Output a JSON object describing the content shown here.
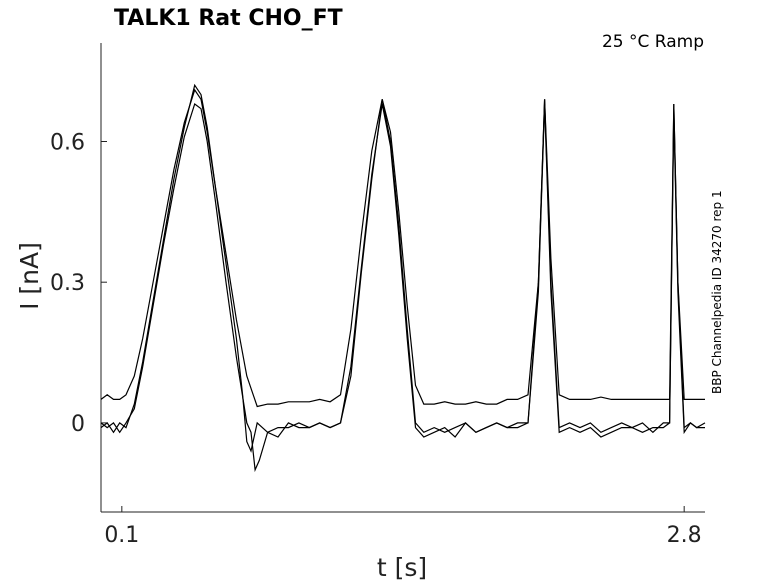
{
  "chart_data": {
    "type": "line",
    "title": "TALK1  Rat  CHO_FT",
    "annotation": "25 °C  Ramp",
    "side_label": "BBP Channelpedia ID 34270 rep 1",
    "xlabel": "t [s]",
    "ylabel": "I [nA]",
    "xlim": [
      0.0,
      2.9
    ],
    "ylim": [
      -0.19,
      0.81
    ],
    "xticks": [
      {
        "value": 0.1,
        "label": "0.1"
      },
      {
        "value": 2.8,
        "label": "2.8"
      }
    ],
    "yticks": [
      {
        "value": 0.0,
        "label": "0"
      },
      {
        "value": 0.3,
        "label": "0.3"
      },
      {
        "value": 0.6,
        "label": "0.6"
      }
    ],
    "grid": false,
    "series": [
      {
        "x": [
          0.0,
          0.03,
          0.06,
          0.09,
          0.12,
          0.16,
          0.2,
          0.25,
          0.3,
          0.35,
          0.4,
          0.45,
          0.48,
          0.51,
          0.55,
          0.6,
          0.65,
          0.7,
          0.75,
          0.8,
          0.85,
          0.9,
          0.95,
          1.0,
          1.05,
          1.1,
          1.15,
          1.2,
          1.25,
          1.3,
          1.35,
          1.39,
          1.43,
          1.47,
          1.51,
          1.55,
          1.6,
          1.65,
          1.7,
          1.75,
          1.8,
          1.85,
          1.9,
          1.95,
          2.0,
          2.05,
          2.1,
          2.13,
          2.16,
          2.2,
          2.25,
          2.3,
          2.35,
          2.4,
          2.45,
          2.5,
          2.55,
          2.6,
          2.65,
          2.7,
          2.73,
          2.75,
          2.77,
          2.8,
          2.83,
          2.86,
          2.9
        ],
        "y": [
          0.05,
          0.06,
          0.05,
          0.05,
          0.06,
          0.1,
          0.18,
          0.3,
          0.42,
          0.54,
          0.64,
          0.71,
          0.69,
          0.62,
          0.5,
          0.36,
          0.22,
          0.1,
          0.035,
          0.04,
          0.04,
          0.045,
          0.045,
          0.045,
          0.05,
          0.045,
          0.06,
          0.2,
          0.4,
          0.58,
          0.69,
          0.62,
          0.45,
          0.25,
          0.08,
          0.04,
          0.04,
          0.045,
          0.04,
          0.04,
          0.045,
          0.04,
          0.04,
          0.05,
          0.05,
          0.06,
          0.3,
          0.69,
          0.35,
          0.06,
          0.05,
          0.05,
          0.05,
          0.055,
          0.05,
          0.05,
          0.05,
          0.05,
          0.05,
          0.05,
          0.05,
          0.68,
          0.3,
          0.05,
          0.05,
          0.05,
          0.05
        ]
      },
      {
        "x": [
          0.0,
          0.03,
          0.06,
          0.09,
          0.12,
          0.16,
          0.2,
          0.25,
          0.3,
          0.35,
          0.4,
          0.45,
          0.48,
          0.51,
          0.55,
          0.6,
          0.65,
          0.68,
          0.7,
          0.72,
          0.75,
          0.8,
          0.85,
          0.9,
          0.95,
          1.0,
          1.05,
          1.1,
          1.15,
          1.2,
          1.25,
          1.3,
          1.35,
          1.39,
          1.43,
          1.47,
          1.51,
          1.55,
          1.6,
          1.65,
          1.7,
          1.75,
          1.8,
          1.85,
          1.9,
          1.95,
          2.0,
          2.05,
          2.1,
          2.13,
          2.16,
          2.2,
          2.25,
          2.3,
          2.35,
          2.4,
          2.45,
          2.5,
          2.55,
          2.6,
          2.65,
          2.7,
          2.73,
          2.75,
          2.77,
          2.8,
          2.83,
          2.86,
          2.9
        ],
        "y": [
          -0.01,
          0.0,
          -0.02,
          0.0,
          -0.01,
          0.04,
          0.13,
          0.26,
          0.39,
          0.52,
          0.63,
          0.72,
          0.7,
          0.63,
          0.5,
          0.34,
          0.18,
          0.06,
          -0.04,
          -0.06,
          0.0,
          -0.02,
          -0.01,
          -0.01,
          0.0,
          -0.01,
          0.0,
          -0.01,
          0.0,
          0.1,
          0.32,
          0.52,
          0.69,
          0.6,
          0.42,
          0.2,
          0.0,
          -0.02,
          -0.01,
          -0.02,
          -0.01,
          0.0,
          -0.02,
          -0.01,
          0.0,
          -0.01,
          0.0,
          0.0,
          0.3,
          0.69,
          0.3,
          -0.01,
          0.0,
          -0.01,
          0.0,
          -0.02,
          -0.01,
          0.0,
          -0.01,
          0.0,
          -0.02,
          0.0,
          0.0,
          0.68,
          0.3,
          -0.01,
          0.0,
          -0.01,
          0.0
        ]
      },
      {
        "x": [
          0.0,
          0.03,
          0.06,
          0.09,
          0.12,
          0.16,
          0.2,
          0.25,
          0.3,
          0.35,
          0.4,
          0.45,
          0.48,
          0.51,
          0.55,
          0.6,
          0.65,
          0.7,
          0.72,
          0.74,
          0.76,
          0.8,
          0.85,
          0.9,
          0.95,
          1.0,
          1.05,
          1.1,
          1.15,
          1.2,
          1.25,
          1.3,
          1.35,
          1.39,
          1.43,
          1.47,
          1.51,
          1.55,
          1.6,
          1.65,
          1.7,
          1.75,
          1.8,
          1.85,
          1.9,
          1.95,
          2.0,
          2.05,
          2.1,
          2.13,
          2.16,
          2.2,
          2.25,
          2.3,
          2.35,
          2.4,
          2.45,
          2.5,
          2.55,
          2.6,
          2.65,
          2.7,
          2.73,
          2.75,
          2.77,
          2.8,
          2.83,
          2.86,
          2.9
        ],
        "y": [
          0.0,
          -0.01,
          0.0,
          -0.02,
          0.0,
          0.03,
          0.12,
          0.25,
          0.38,
          0.5,
          0.61,
          0.68,
          0.67,
          0.6,
          0.47,
          0.3,
          0.14,
          0.0,
          -0.02,
          -0.1,
          -0.08,
          -0.02,
          -0.03,
          0.0,
          -0.01,
          -0.01,
          0.0,
          -0.01,
          0.0,
          0.12,
          0.33,
          0.53,
          0.68,
          0.59,
          0.4,
          0.18,
          -0.01,
          -0.03,
          -0.02,
          -0.01,
          -0.03,
          0.0,
          -0.02,
          -0.01,
          0.0,
          -0.01,
          -0.01,
          0.0,
          0.28,
          0.68,
          0.28,
          -0.02,
          -0.01,
          -0.02,
          -0.01,
          -0.03,
          -0.02,
          -0.01,
          -0.01,
          -0.02,
          -0.01,
          -0.01,
          0.0,
          0.66,
          0.28,
          -0.02,
          0.0,
          -0.01,
          -0.01
        ]
      }
    ]
  }
}
